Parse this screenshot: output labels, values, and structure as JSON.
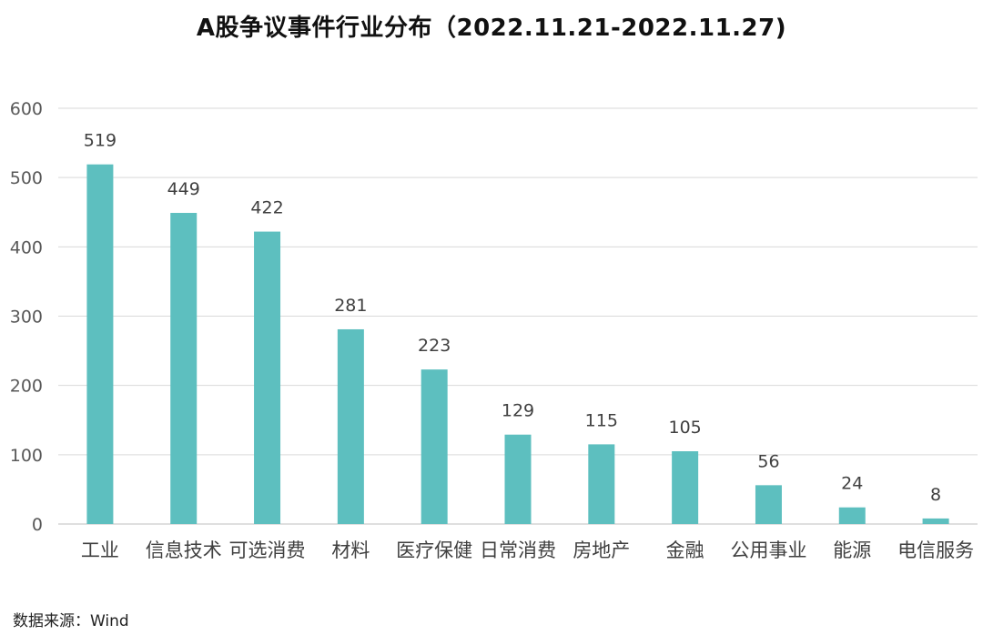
{
  "chart_data": {
    "type": "bar",
    "title": "A股争议事件行业分布（2022.11.21-2022.11.27)",
    "categories": [
      "工业",
      "信息技术",
      "可选消费",
      "材料",
      "医疗保健",
      "日常消费",
      "房地产",
      "金融",
      "公用事业",
      "能源",
      "电信服务"
    ],
    "values": [
      519,
      449,
      422,
      281,
      223,
      129,
      115,
      105,
      56,
      24,
      8
    ],
    "xlabel": "",
    "ylabel": "",
    "ylim": [
      0,
      600
    ],
    "yticks": [
      "0",
      "100",
      "200",
      "300",
      "400",
      "500",
      "600"
    ],
    "bar_color": "#5dbfbf",
    "grid": true,
    "legend": "none"
  },
  "source": "数据来源：Wind"
}
